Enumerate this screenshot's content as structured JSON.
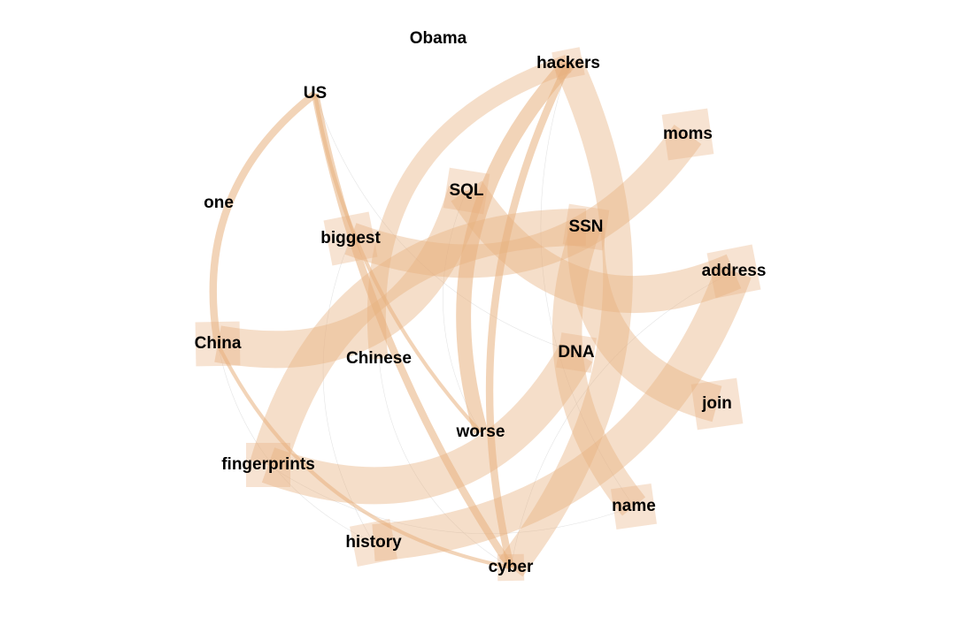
{
  "colors": {
    "edge": "#e8b07e",
    "node_label": "#000000",
    "background": "#ffffff"
  },
  "nodes": [
    {
      "id": "obama",
      "label": "Obama"
    },
    {
      "id": "hackers",
      "label": "hackers"
    },
    {
      "id": "us",
      "label": "US"
    },
    {
      "id": "moms",
      "label": "moms"
    },
    {
      "id": "sql",
      "label": "SQL"
    },
    {
      "id": "one",
      "label": "one"
    },
    {
      "id": "ssn",
      "label": "SSN"
    },
    {
      "id": "biggest",
      "label": "biggest"
    },
    {
      "id": "address",
      "label": "address"
    },
    {
      "id": "china",
      "label": "China"
    },
    {
      "id": "dna",
      "label": "DNA"
    },
    {
      "id": "chinese",
      "label": "Chinese"
    },
    {
      "id": "join",
      "label": "join"
    },
    {
      "id": "worse",
      "label": "worse"
    },
    {
      "id": "fingerprints",
      "label": "fingerprints"
    },
    {
      "id": "name",
      "label": "name"
    },
    {
      "id": "history",
      "label": "history"
    },
    {
      "id": "cyber",
      "label": "cyber"
    }
  ],
  "edges": [
    {
      "source": "china",
      "target": "sql",
      "weight": 10
    },
    {
      "source": "sql",
      "target": "address",
      "weight": 10
    },
    {
      "source": "ssn",
      "target": "fingerprints",
      "weight": 10
    },
    {
      "source": "ssn",
      "target": "join",
      "weight": 10
    },
    {
      "source": "fingerprints",
      "target": "dna",
      "weight": 10
    },
    {
      "source": "history",
      "target": "address",
      "weight": 10
    },
    {
      "source": "cyber",
      "target": "hackers",
      "weight": 8
    },
    {
      "source": "biggest",
      "target": "moms",
      "weight": 9
    },
    {
      "source": "ssn",
      "target": "name",
      "weight": 8
    },
    {
      "source": "hackers",
      "target": "chinese",
      "weight": 5
    },
    {
      "source": "hackers",
      "target": "worse",
      "weight": 4
    },
    {
      "source": "us",
      "target": "china",
      "weight": 2
    },
    {
      "source": "us",
      "target": "cyber",
      "weight": 2
    },
    {
      "source": "china",
      "target": "cyber",
      "weight": 1
    },
    {
      "source": "hackers",
      "target": "cyber",
      "weight": 2
    },
    {
      "source": "us",
      "target": "worse",
      "weight": 1
    }
  ]
}
